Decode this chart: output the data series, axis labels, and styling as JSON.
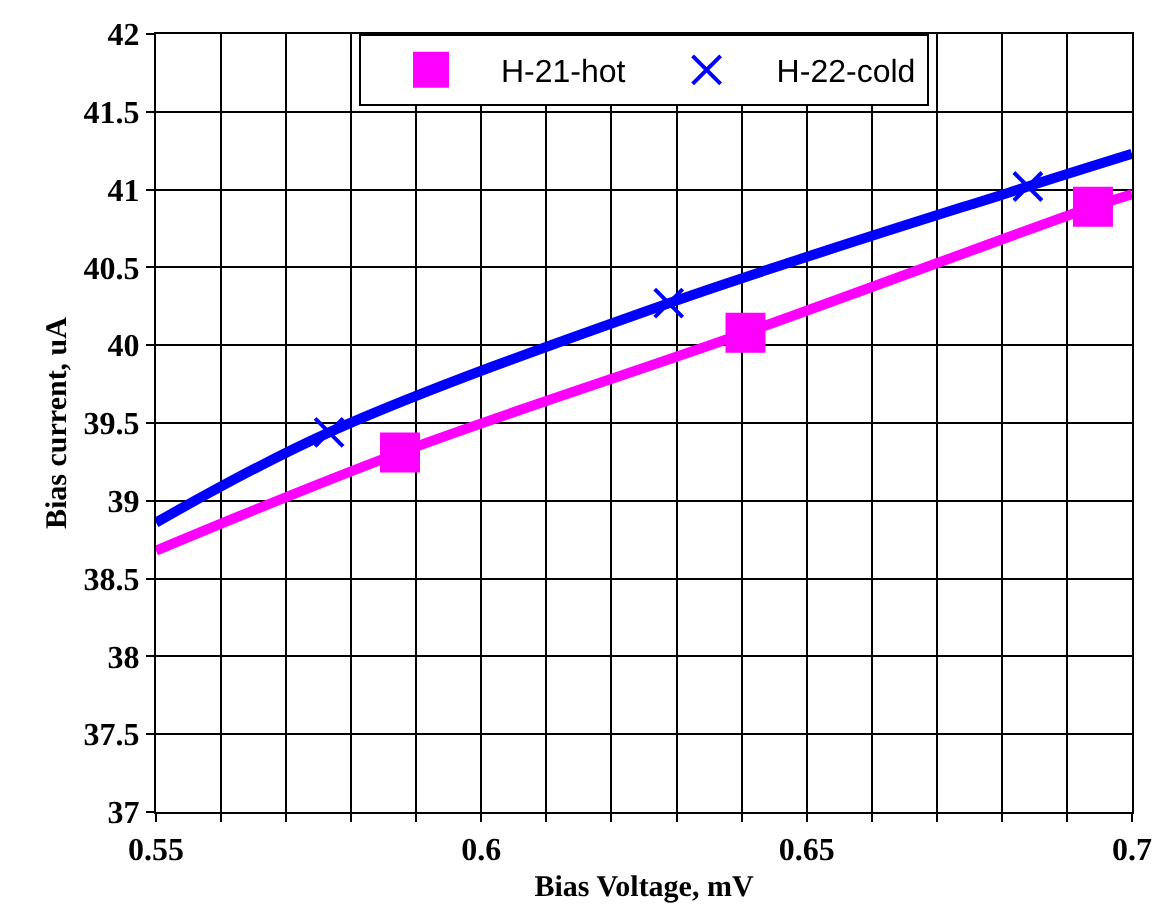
{
  "chart_data": {
    "type": "line",
    "xlabel": "Bias Voltage, mV",
    "ylabel": "Bias current, uA",
    "xlim": [
      0.55,
      0.7
    ],
    "ylim": [
      37,
      42
    ],
    "xticks": [
      0.55,
      {
        "value": 0.56,
        "label": null
      },
      {
        "value": 0.57,
        "label": null
      },
      {
        "value": 0.58,
        "label": null
      },
      {
        "value": 0.59,
        "label": null
      },
      0.6,
      {
        "value": 0.61,
        "label": null
      },
      {
        "value": 0.62,
        "label": null
      },
      {
        "value": 0.63,
        "label": null
      },
      {
        "value": 0.64,
        "label": null
      },
      0.65,
      {
        "value": 0.66,
        "label": null
      },
      {
        "value": 0.67,
        "label": null
      },
      {
        "value": 0.68,
        "label": null
      },
      {
        "value": 0.69,
        "label": null
      },
      0.7
    ],
    "yticks": [
      37,
      37.5,
      38,
      38.5,
      39,
      39.5,
      40,
      40.5,
      41,
      41.5,
      42
    ],
    "grid": true,
    "legend": "top",
    "line_style": "solid",
    "series": [
      {
        "marker": "none",
        "color": "#ff00ff",
        "x": [
          0.55,
          0.5875,
          0.6406,
          0.694,
          0.7
        ],
        "values": [
          38.68,
          39.31,
          40.08,
          40.89,
          40.97
        ]
      },
      {
        "marker": "none",
        "color": "#0000ff",
        "x": [
          0.55,
          0.5766,
          0.6288,
          0.684,
          0.7
        ],
        "values": [
          38.86,
          39.44,
          40.27,
          41.02,
          41.23
        ]
      },
      {
        "type": "scatter",
        "marker": "square",
        "name": "H-21-hot",
        "color": "#ff00ff",
        "x": [
          0.5875,
          0.6406,
          0.694
        ],
        "values": [
          39.31,
          40.08,
          40.89
        ]
      },
      {
        "type": "scatter",
        "marker": "cross",
        "name": "H-22-cold",
        "color": "#0000ff",
        "x": [
          0.5766,
          0.6288,
          0.684
        ],
        "values": [
          39.44,
          40.27,
          41.02
        ]
      }
    ]
  }
}
